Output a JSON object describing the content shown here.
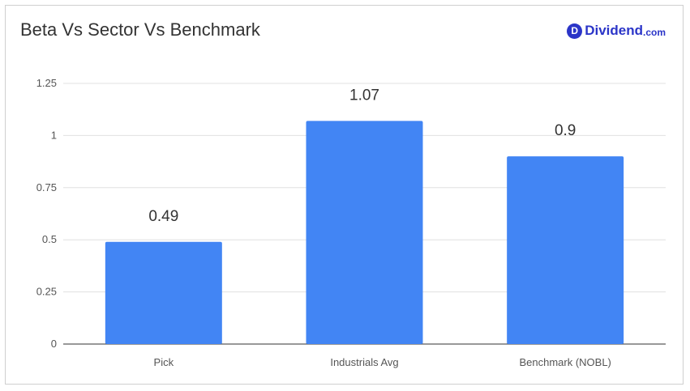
{
  "title": "Beta Vs Sector Vs Benchmark",
  "brand": {
    "badge": "D",
    "name": "Dividend",
    "suffix": ".com",
    "color": "#2b35c8"
  },
  "chart_data": {
    "type": "bar",
    "title": "Beta Vs Sector Vs Benchmark",
    "categories": [
      "Pick",
      "Industrials Avg",
      "Benchmark (NOBL)"
    ],
    "values": [
      0.49,
      1.07,
      0.9
    ],
    "data_labels": [
      "0.49",
      "1.07",
      "0.9"
    ],
    "ylim": [
      0,
      1.25
    ],
    "yticks": [
      0,
      0.25,
      0.5,
      0.75,
      1,
      1.25
    ],
    "ytick_labels": [
      "0",
      "0.25",
      "0.5",
      "0.75",
      "1",
      "1.25"
    ],
    "grid": true,
    "bar_color": "#4285f4",
    "xlabel": "",
    "ylabel": ""
  }
}
